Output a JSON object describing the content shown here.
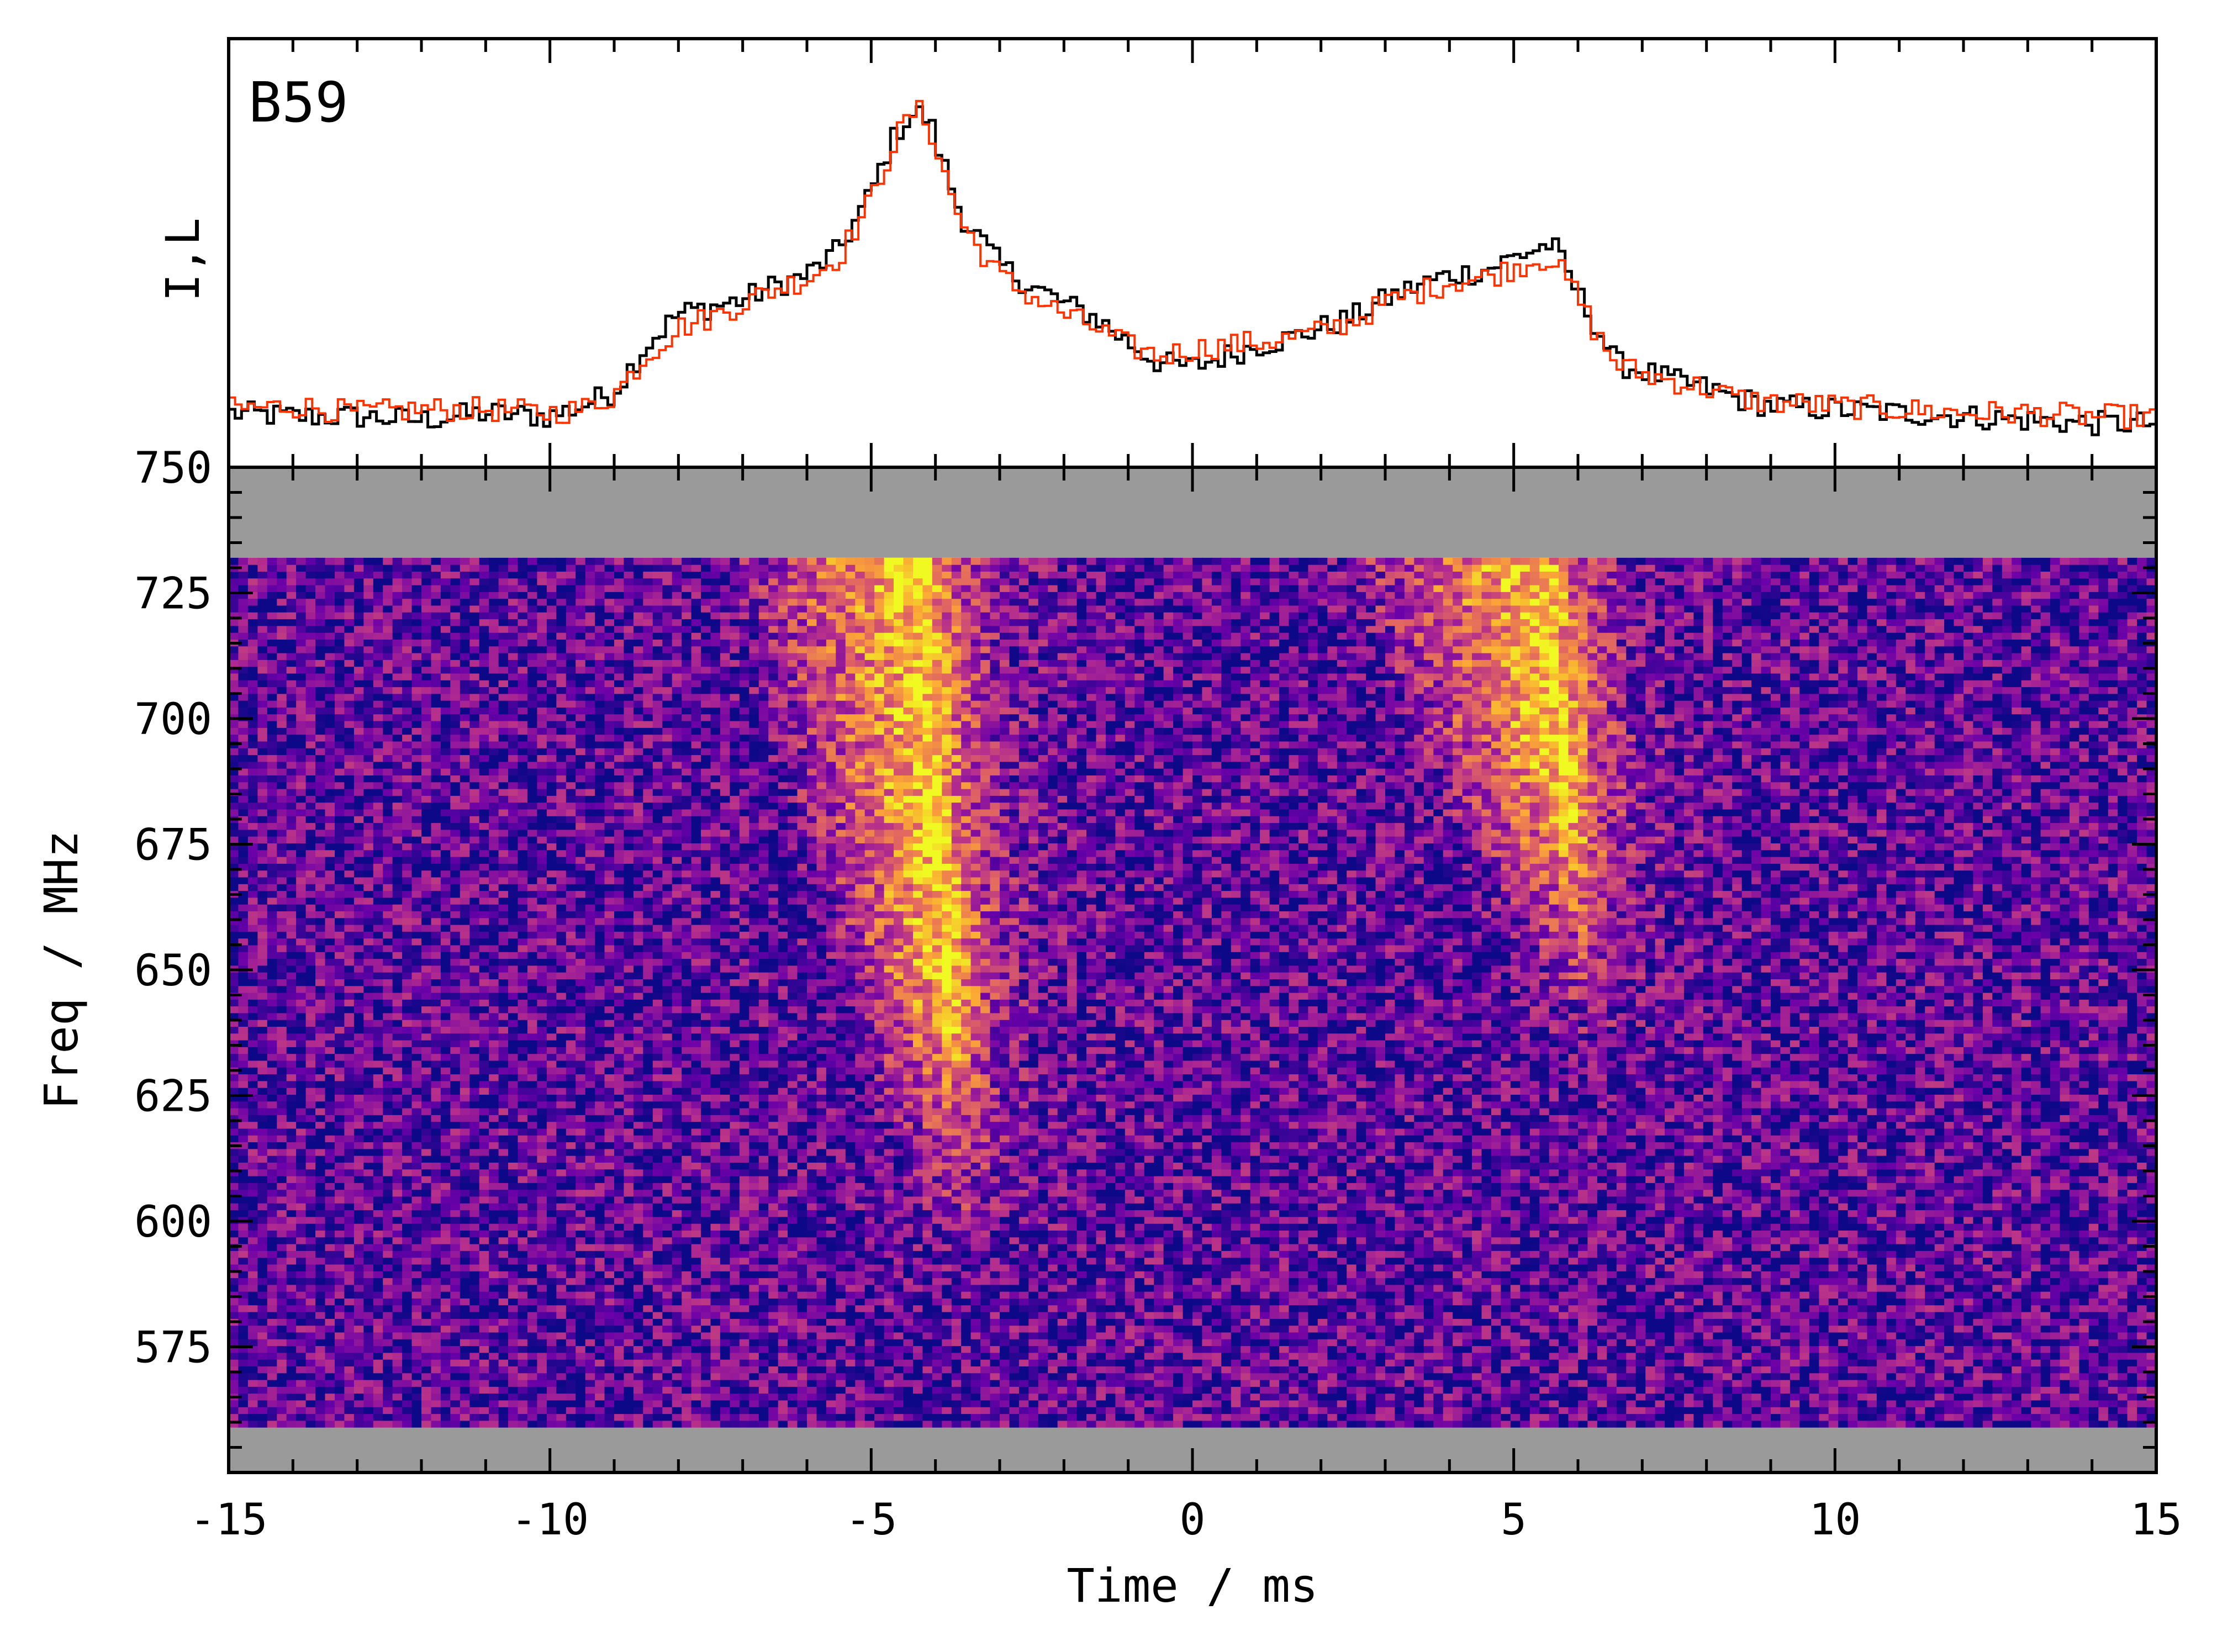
{
  "chart_data": [
    {
      "type": "line",
      "panel": "profile",
      "title": "B59",
      "ylabel": "I,L",
      "xlim": [
        -15,
        15
      ],
      "series": [
        {
          "color": "#000000",
          "x": [
            -15,
            -14,
            -13,
            -12,
            -11,
            -10,
            -9.5,
            -9,
            -8.5,
            -8,
            -7.5,
            -7,
            -6.5,
            -6,
            -5.5,
            -5,
            -4.7,
            -4.5,
            -4.3,
            -4.1,
            -3.9,
            -3.6,
            -3.3,
            -3,
            -2.7,
            -2.3,
            -2,
            -1.5,
            -1,
            -0.5,
            0,
            0.5,
            1,
            1.5,
            2,
            2.5,
            3,
            3.5,
            4,
            4.5,
            5,
            5.3,
            5.6,
            6,
            6.3,
            6.6,
            7,
            7.5,
            8,
            8.5,
            9,
            10,
            11,
            12,
            13,
            14,
            15
          ],
          "values": [
            0.06,
            0.05,
            0.05,
            0.04,
            0.06,
            0.05,
            0.08,
            0.12,
            0.25,
            0.34,
            0.36,
            0.38,
            0.42,
            0.45,
            0.52,
            0.68,
            0.82,
            0.88,
            0.91,
            0.89,
            0.78,
            0.62,
            0.55,
            0.48,
            0.44,
            0.4,
            0.37,
            0.33,
            0.26,
            0.2,
            0.19,
            0.22,
            0.25,
            0.27,
            0.3,
            0.33,
            0.38,
            0.42,
            0.45,
            0.46,
            0.5,
            0.52,
            0.54,
            0.4,
            0.3,
            0.2,
            0.18,
            0.15,
            0.13,
            0.1,
            0.08,
            0.07,
            0.06,
            0.05,
            0.04,
            0.03,
            0.03
          ]
        },
        {
          "color": "#ff3300",
          "x": [
            -15,
            -14,
            -13,
            -12,
            -11,
            -10,
            -9.5,
            -9,
            -8.5,
            -8,
            -7.5,
            -7,
            -6.5,
            -6,
            -5.5,
            -5,
            -4.7,
            -4.5,
            -4.3,
            -4.1,
            -3.9,
            -3.6,
            -3.3,
            -3,
            -2.7,
            -2.3,
            -2,
            -1.5,
            -1,
            -0.5,
            0,
            0.5,
            1,
            1.5,
            2,
            2.5,
            3,
            3.5,
            4,
            4.5,
            5,
            5.3,
            5.6,
            6,
            6.3,
            6.6,
            7,
            7.5,
            8,
            8.5,
            9,
            10,
            11,
            12,
            13,
            14,
            15
          ],
          "values": [
            0.07,
            0.08,
            0.06,
            0.07,
            0.07,
            0.06,
            0.07,
            0.11,
            0.22,
            0.3,
            0.33,
            0.37,
            0.41,
            0.44,
            0.5,
            0.66,
            0.8,
            0.87,
            0.92,
            0.88,
            0.76,
            0.6,
            0.52,
            0.45,
            0.41,
            0.37,
            0.34,
            0.3,
            0.25,
            0.22,
            0.24,
            0.25,
            0.26,
            0.27,
            0.29,
            0.32,
            0.37,
            0.4,
            0.43,
            0.44,
            0.47,
            0.49,
            0.5,
            0.39,
            0.28,
            0.2,
            0.17,
            0.15,
            0.13,
            0.1,
            0.09,
            0.08,
            0.07,
            0.06,
            0.06,
            0.05,
            0.05
          ]
        }
      ]
    },
    {
      "type": "heatmap",
      "panel": "dynamic-spectrum",
      "xlabel": "Time / ms",
      "ylabel": "Freq / MHz",
      "xlim": [
        -15,
        15
      ],
      "ylim": [
        550,
        750
      ],
      "data_freq_range": [
        559,
        732
      ],
      "colormap": [
        "#0d0887",
        "#6a00a8",
        "#b12a90",
        "#e16462",
        "#fca636",
        "#f0f921"
      ],
      "mask_color": "#9a9a9a",
      "components": [
        {
          "time_start": -7.5,
          "time_peak": -4.2,
          "freq_low": 620,
          "freq_high": 732
        },
        {
          "time_start": 2.0,
          "time_peak": 5.5,
          "freq_low": 660,
          "freq_high": 732
        }
      ]
    }
  ],
  "axes": {
    "x_ticks": [
      "-15",
      "-10",
      "-5",
      "0",
      "5",
      "10",
      "15"
    ],
    "y_ticks": [
      "750",
      "725",
      "700",
      "675",
      "650",
      "625",
      "600",
      "575"
    ]
  }
}
